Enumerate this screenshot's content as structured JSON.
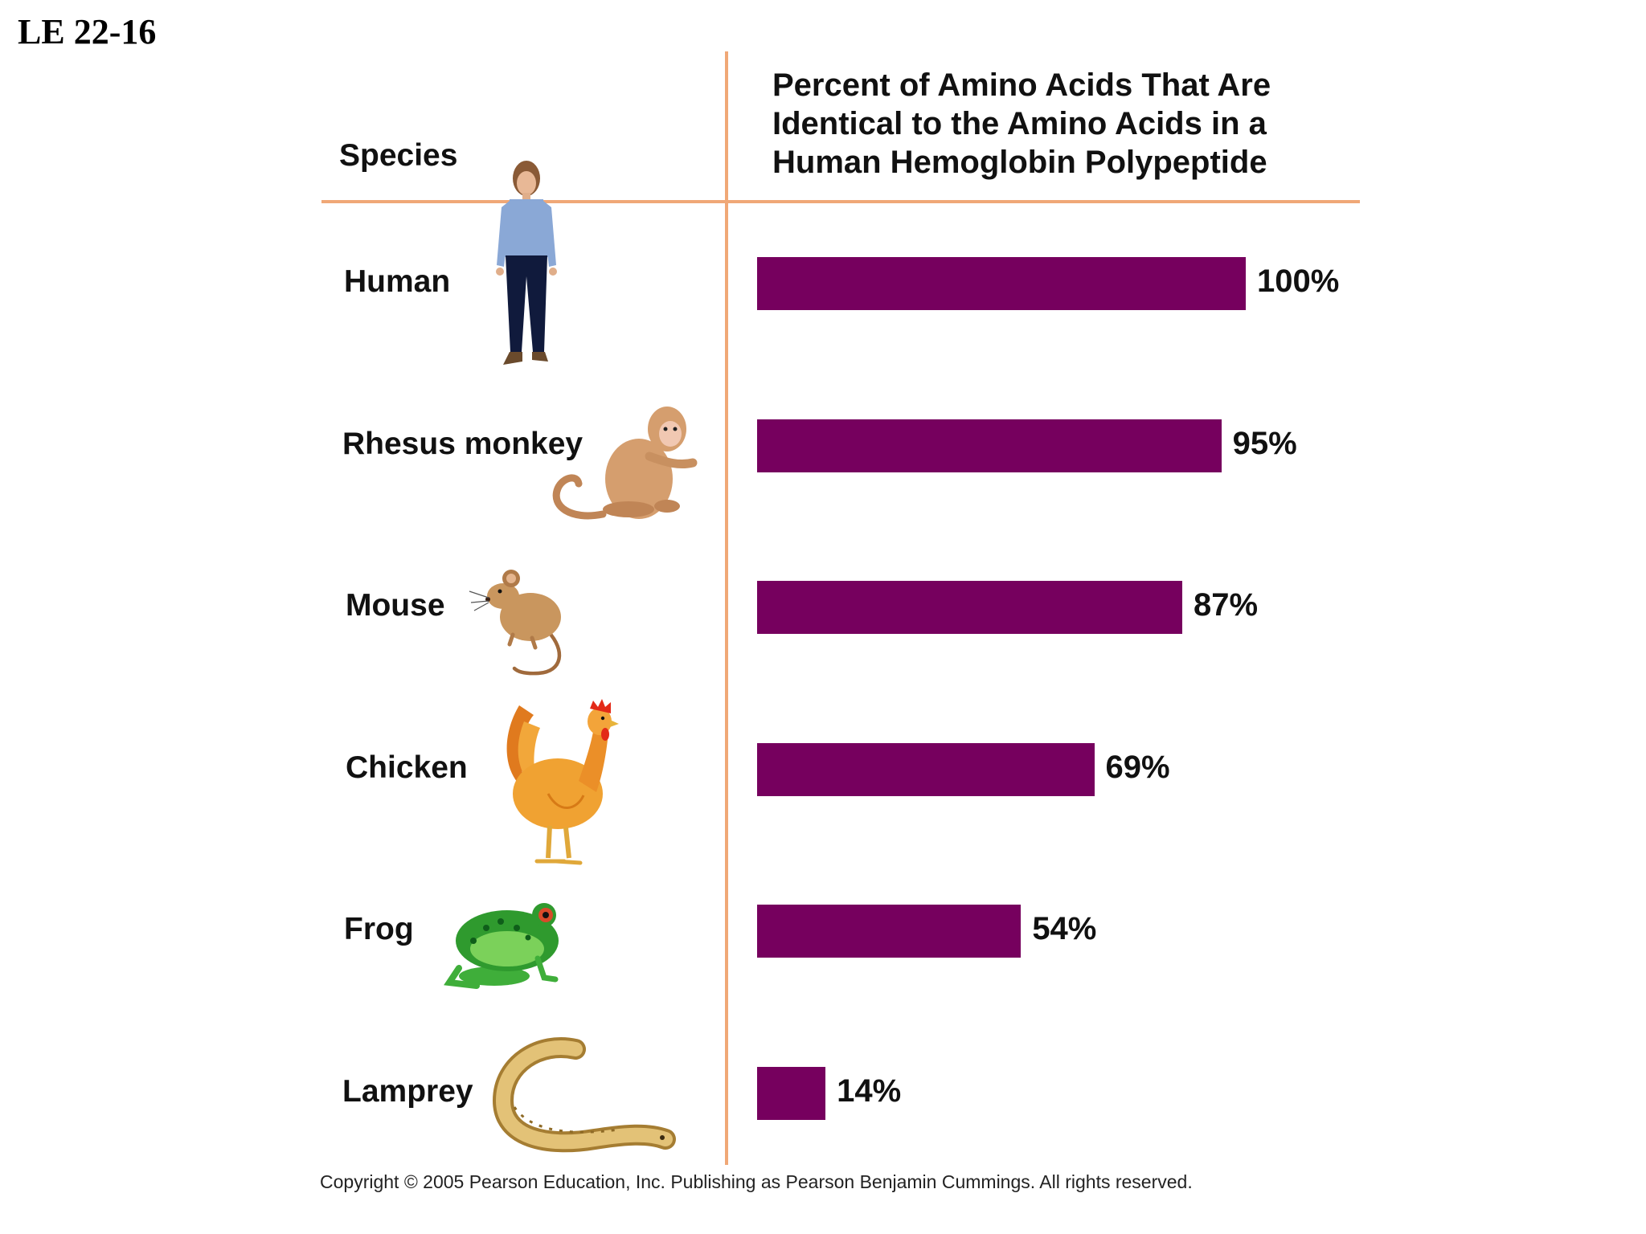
{
  "slide_label": "LE 22-16",
  "copyright": "Copyright © 2005 Pearson Education, Inc. Publishing as Pearson Benjamin Cummings. All rights reserved.",
  "colors": {
    "bar": "#76005e",
    "rule": "#f0a877"
  },
  "icons": [
    "human-icon",
    "rhesus-monkey-icon",
    "mouse-icon",
    "chicken-icon",
    "frog-icon",
    "lamprey-icon"
  ],
  "chart_data": {
    "type": "bar",
    "orientation": "horizontal",
    "category_header": "Species",
    "value_header_lines": [
      "Percent of Amino Acids That Are",
      "Identical to the Amino Acids in a",
      "Human Hemoglobin Polypeptide"
    ],
    "categories": [
      "Human",
      "Rhesus monkey",
      "Mouse",
      "Chicken",
      "Frog",
      "Lamprey"
    ],
    "values": [
      100,
      95,
      87,
      69,
      54,
      14
    ],
    "value_labels": [
      "100%",
      "95%",
      "87%",
      "69%",
      "54%",
      "14%"
    ],
    "xlim": [
      0,
      100
    ],
    "grid": false,
    "legend": "none"
  }
}
